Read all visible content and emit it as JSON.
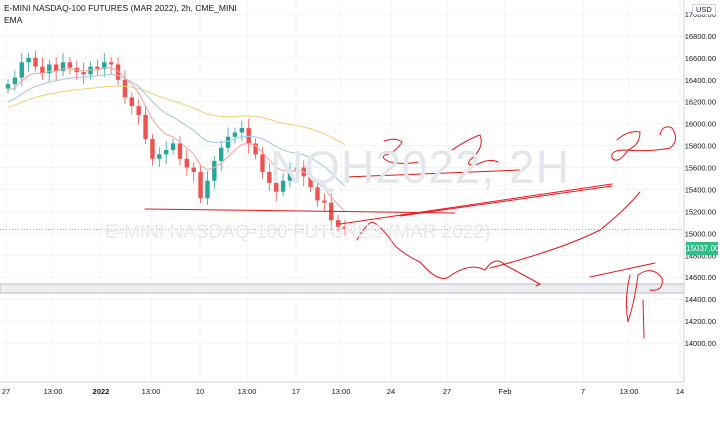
{
  "chart_data": {
    "type": "candlestick",
    "title": "E-MINI NASDAQ-100 FUTURES (MAR 2022), 2h, CME_MINI",
    "indicator": "EMA",
    "currency": "USD",
    "watermark": {
      "symbol": "NQH2022, 2H",
      "name": "E-MINI NASDAQ-100 FUTURES (MAR 2022)"
    },
    "ylim": [
      13900,
      17100
    ],
    "y_ticks": [
      14000,
      14200,
      14400,
      14600,
      14800,
      15000,
      15200,
      15400,
      15600,
      15800,
      16000,
      16200,
      16400,
      16600,
      16800,
      17000
    ],
    "x_ticks": [
      "27",
      "13:00",
      "2022",
      "13:00",
      "10",
      "13:00",
      "17",
      "13:00",
      "24",
      "27",
      "Feb",
      "7",
      "13:00",
      "14"
    ],
    "last_price": "15037.00",
    "colors": {
      "up": "#26a69a",
      "down": "#ef5350",
      "ema_fast": "#f7a9a0",
      "ema_mid": "#a9c7e8",
      "ema_slow": "#f5d27a",
      "drawing": "#e8161b",
      "grid": "#f0f3fa"
    },
    "grid": true,
    "close_series": [
      16360,
      16420,
      16560,
      16600,
      16520,
      16460,
      16540,
      16480,
      16560,
      16510,
      16470,
      16450,
      16520,
      16500,
      16560,
      16540,
      16400,
      16240,
      16160,
      16080,
      15860,
      15680,
      15720,
      15760,
      15820,
      15680,
      15600,
      15560,
      15320,
      15480,
      15660,
      15780,
      15880,
      15920,
      15960,
      15820,
      15720,
      15560,
      15460,
      15380,
      15480,
      15560,
      15600,
      15520,
      15420,
      15300,
      15280,
      15120,
      15060,
      15040
    ],
    "ema_fast": [
      16300,
      16330,
      16390,
      16440,
      16460,
      16460,
      16480,
      16480,
      16500,
      16500,
      16490,
      16480,
      16490,
      16490,
      16510,
      16510,
      16480,
      16420,
      16360,
      16280,
      16160,
      16040,
      15960,
      15900,
      15880,
      15830,
      15780,
      15720,
      15620,
      15580,
      15600,
      15640,
      15700,
      15760,
      15810,
      15820,
      15800,
      15740,
      15670,
      15600,
      15570,
      15570,
      15575,
      15560,
      15520,
      15460,
      15410,
      15330,
      15260,
      15200
    ],
    "ema_mid": [
      16200,
      16230,
      16270,
      16310,
      16340,
      16360,
      16380,
      16390,
      16405,
      16415,
      16420,
      16425,
      16430,
      16435,
      16445,
      16450,
      16440,
      16410,
      16380,
      16340,
      16270,
      16200,
      16140,
      16090,
      16060,
      16020,
      15980,
      15940,
      15880,
      15840,
      15830,
      15830,
      15840,
      15860,
      15880,
      15885,
      15880,
      15860,
      15830,
      15790,
      15760,
      15740,
      15730,
      15715,
      15690,
      15650,
      15610,
      15550,
      15490,
      15430
    ],
    "ema_slow": [
      16150,
      16170,
      16195,
      16220,
      16240,
      16255,
      16270,
      16280,
      16292,
      16302,
      16310,
      16316,
      16322,
      16328,
      16336,
      16342,
      16344,
      16340,
      16332,
      16320,
      16298,
      16272,
      16248,
      16226,
      16208,
      16188,
      16166,
      16142,
      16112,
      16088,
      16074,
      16066,
      16064,
      16066,
      16070,
      16070,
      16066,
      16056,
      16040,
      16020,
      16004,
      15992,
      15982,
      15970,
      15954,
      15932,
      15908,
      15876,
      15842,
      15808
    ]
  }
}
